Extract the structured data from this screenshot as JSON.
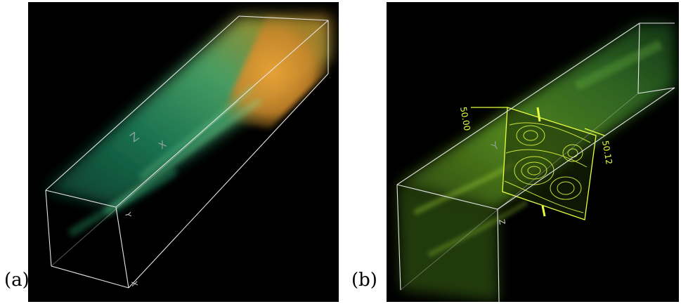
{
  "figure": {
    "panels": [
      {
        "label": "(a)",
        "axis_labels": [
          "Z",
          "X",
          "Y",
          "X"
        ]
      },
      {
        "label": "(b)",
        "axis_labels": [
          "50.00",
          "50.12",
          "Y",
          "Z"
        ]
      }
    ]
  },
  "colors": {
    "background": "#000000",
    "box_edges": "#e8e8e8",
    "plume_a_near": "#1e8f62",
    "plume_a_far": "#e0a030",
    "plume_b": "#5fae2a",
    "slice": "#e8ff40"
  }
}
